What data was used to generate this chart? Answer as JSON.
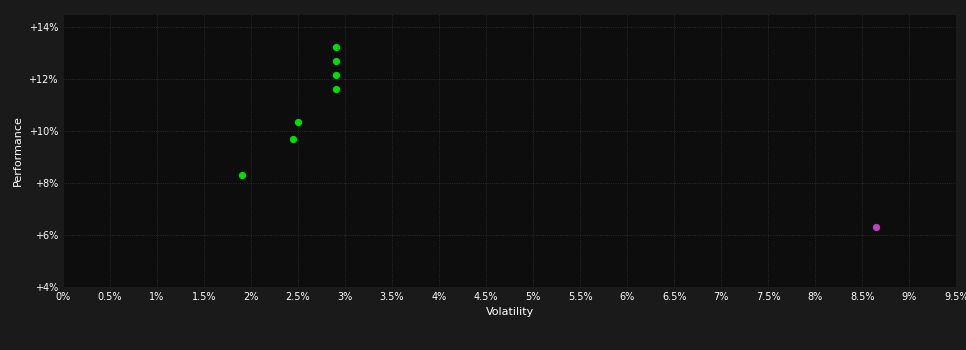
{
  "background_color": "#1a1a1a",
  "plot_bg_color": "#0d0d0d",
  "text_color": "#ffffff",
  "xlabel": "Volatility",
  "ylabel": "Performance",
  "xlim": [
    0.0,
    0.095
  ],
  "ylim": [
    0.04,
    0.145
  ],
  "x_ticks": [
    0.0,
    0.005,
    0.01,
    0.015,
    0.02,
    0.025,
    0.03,
    0.035,
    0.04,
    0.045,
    0.05,
    0.055,
    0.06,
    0.065,
    0.07,
    0.075,
    0.08,
    0.085,
    0.09,
    0.095
  ],
  "y_ticks": [
    0.04,
    0.06,
    0.08,
    0.1,
    0.12,
    0.14
  ],
  "green_points": [
    [
      0.019,
      0.083
    ],
    [
      0.025,
      0.1035
    ],
    [
      0.0245,
      0.097
    ],
    [
      0.029,
      0.1325
    ],
    [
      0.029,
      0.127
    ],
    [
      0.029,
      0.1215
    ],
    [
      0.029,
      0.116
    ]
  ],
  "magenta_point": [
    0.0865,
    0.063
  ],
  "green_color": "#00dd00",
  "magenta_color": "#bb44bb",
  "point_size": 18
}
